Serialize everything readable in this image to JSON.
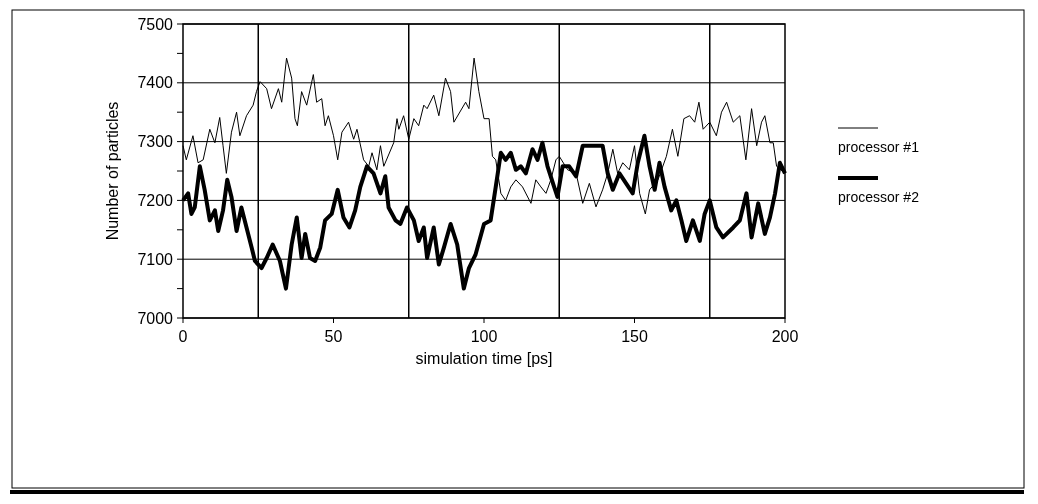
{
  "chart_data": {
    "type": "line",
    "xlabel": "simulation time  [ps]",
    "ylabel": "Number of particles",
    "xlim": [
      0,
      200
    ],
    "xticks": [
      0,
      50,
      100,
      150,
      200
    ],
    "ylim": [
      7000,
      7500
    ],
    "yticks": [
      7000,
      {
        "value": 7050,
        "label": null
      },
      7100,
      {
        "value": 7150,
        "label": null
      },
      7200,
      {
        "value": 7250,
        "label": null
      },
      7300,
      {
        "value": 7350,
        "label": null
      },
      7400,
      {
        "value": 7450,
        "label": null
      },
      7500
    ],
    "grid": "y",
    "legend": "right",
    "line_style": "solid",
    "ref_lines": [
      {
        "axis": "x",
        "value": 25,
        "color": "#000000"
      },
      {
        "axis": "x",
        "value": 75,
        "color": "#000000"
      },
      {
        "axis": "x",
        "value": 125,
        "color": "#000000"
      },
      {
        "axis": "x",
        "value": 175,
        "color": "#000000"
      }
    ],
    "series": [
      {
        "name": "processor #1",
        "color": "#000000",
        "x": [
          0,
          1.1,
          3.3,
          5,
          6.7,
          8.9,
          10.6,
          12.2,
          13.3,
          14.4,
          16.1,
          17.8,
          18.9,
          21.1,
          23.3,
          24.4,
          25.6,
          27.8,
          29.4,
          31.7,
          32.8,
          34.4,
          36.1,
          37.2,
          38,
          39.4,
          41.1,
          43.3,
          44.4,
          46.1,
          47.2,
          48.3,
          50,
          51.4,
          52.8,
          55,
          56.7,
          57.8,
          60,
          61.7,
          62.8,
          64.4,
          65.6,
          66.7,
          70,
          71.1,
          71.7,
          73.3,
          75,
          76.7,
          78.3,
          80,
          81.1,
          83.3,
          85,
          87.2,
          88.9,
          90,
          93.9,
          95,
          96.7,
          98.3,
          100,
          101.7,
          102.8,
          103.9,
          105.6,
          107.2,
          108.9,
          110.6,
          112.8,
          115.6,
          117.2,
          118.9,
          120.6,
          122.2,
          123.9,
          125,
          127.8,
          130.6,
          132.8,
          135,
          137.2,
          139.4,
          141.1,
          142.8,
          144.4,
          146.1,
          148.3,
          150,
          151.7,
          153.6,
          155,
          157.8,
          160.6,
          162.6,
          164.4,
          166.4,
          168.3,
          170,
          171.4,
          172.8,
          175,
          177.2,
          178.9,
          180.6,
          182.8,
          185,
          187,
          188.9,
          190.6,
          192.2,
          193.3,
          195,
          196.1,
          197.2,
          200
        ],
        "values": [
          7293,
          7269,
          7310,
          7264,
          7269,
          7321,
          7298,
          7341,
          7293,
          7246,
          7316,
          7350,
          7310,
          7344,
          7362,
          7385,
          7402,
          7390,
          7356,
          7390,
          7367,
          7442,
          7408,
          7339,
          7327,
          7385,
          7362,
          7414,
          7367,
          7373,
          7327,
          7344,
          7310,
          7269,
          7316,
          7333,
          7304,
          7321,
          7269,
          7258,
          7281,
          7252,
          7293,
          7258,
          7298,
          7339,
          7321,
          7344,
          7304,
          7339,
          7327,
          7362,
          7356,
          7379,
          7344,
          7408,
          7385,
          7333,
          7367,
          7356,
          7442,
          7385,
          7339,
          7339,
          7275,
          7269,
          7212,
          7200,
          7223,
          7235,
          7223,
          7195,
          7235,
          7223,
          7212,
          7235,
          7269,
          7275,
          7252,
          7246,
          7195,
          7229,
          7189,
          7218,
          7246,
          7287,
          7246,
          7264,
          7252,
          7293,
          7212,
          7177,
          7218,
          7235,
          7275,
          7321,
          7275,
          7339,
          7344,
          7333,
          7367,
          7321,
          7333,
          7310,
          7350,
          7367,
          7333,
          7344,
          7269,
          7356,
          7293,
          7333,
          7344,
          7298,
          7298,
          7258,
          7246
        ]
      },
      {
        "name": "processor #2",
        "color": "#000000",
        "x": [
          0,
          1.7,
          2.8,
          3.9,
          5.6,
          7.2,
          8.9,
          10.6,
          11.7,
          13.3,
          14.7,
          16.1,
          17.8,
          19.4,
          21.1,
          22.8,
          23.9,
          26.1,
          27.8,
          29.8,
          32.2,
          34.2,
          36.1,
          37.8,
          39.4,
          40.6,
          42.2,
          43.9,
          45.6,
          47.2,
          49.4,
          51.4,
          53.3,
          55.3,
          57.2,
          58.9,
          61.1,
          63.3,
          65.6,
          67.2,
          68.3,
          70.6,
          72.2,
          74.4,
          76.7,
          78.3,
          80,
          81.1,
          83.3,
          85,
          86.7,
          88.9,
          91.1,
          93.3,
          95,
          97.2,
          100,
          102.2,
          103.9,
          105.6,
          107.2,
          108.9,
          110.6,
          112.2,
          113.9,
          116.1,
          117.8,
          119.4,
          121.1,
          123.3,
          124.4,
          126.1,
          128.3,
          130.6,
          132.8,
          135,
          137.2,
          139.4,
          141.1,
          142.8,
          145,
          147.2,
          149.4,
          151.1,
          153.3,
          155,
          156.7,
          158.3,
          160,
          162.2,
          163.9,
          165.6,
          167.2,
          169.4,
          171.7,
          173.3,
          175,
          177.2,
          179.4,
          182.8,
          185,
          187.2,
          188.9,
          191.1,
          193.3,
          195,
          196.7,
          198.3,
          200
        ],
        "values": [
          7200,
          7212,
          7177,
          7188,
          7258,
          7218,
          7166,
          7183,
          7148,
          7183,
          7235,
          7206,
          7148,
          7188,
          7154,
          7120,
          7097,
          7085,
          7102,
          7125,
          7097,
          7050,
          7125,
          7171,
          7102,
          7143,
          7102,
          7097,
          7120,
          7166,
          7177,
          7218,
          7171,
          7154,
          7183,
          7223,
          7258,
          7246,
          7212,
          7241,
          7188,
          7166,
          7160,
          7188,
          7166,
          7131,
          7154,
          7102,
          7154,
          7091,
          7120,
          7160,
          7125,
          7050,
          7085,
          7108,
          7160,
          7166,
          7223,
          7281,
          7269,
          7281,
          7252,
          7258,
          7246,
          7287,
          7269,
          7298,
          7258,
          7223,
          7206,
          7258,
          7258,
          7241,
          7293,
          7293,
          7293,
          7293,
          7246,
          7218,
          7246,
          7229,
          7212,
          7264,
          7310,
          7258,
          7218,
          7264,
          7223,
          7183,
          7200,
          7166,
          7131,
          7166,
          7131,
          7177,
          7200,
          7154,
          7137,
          7154,
          7166,
          7212,
          7137,
          7195,
          7143,
          7171,
          7212,
          7264,
          7246
        ]
      }
    ]
  }
}
